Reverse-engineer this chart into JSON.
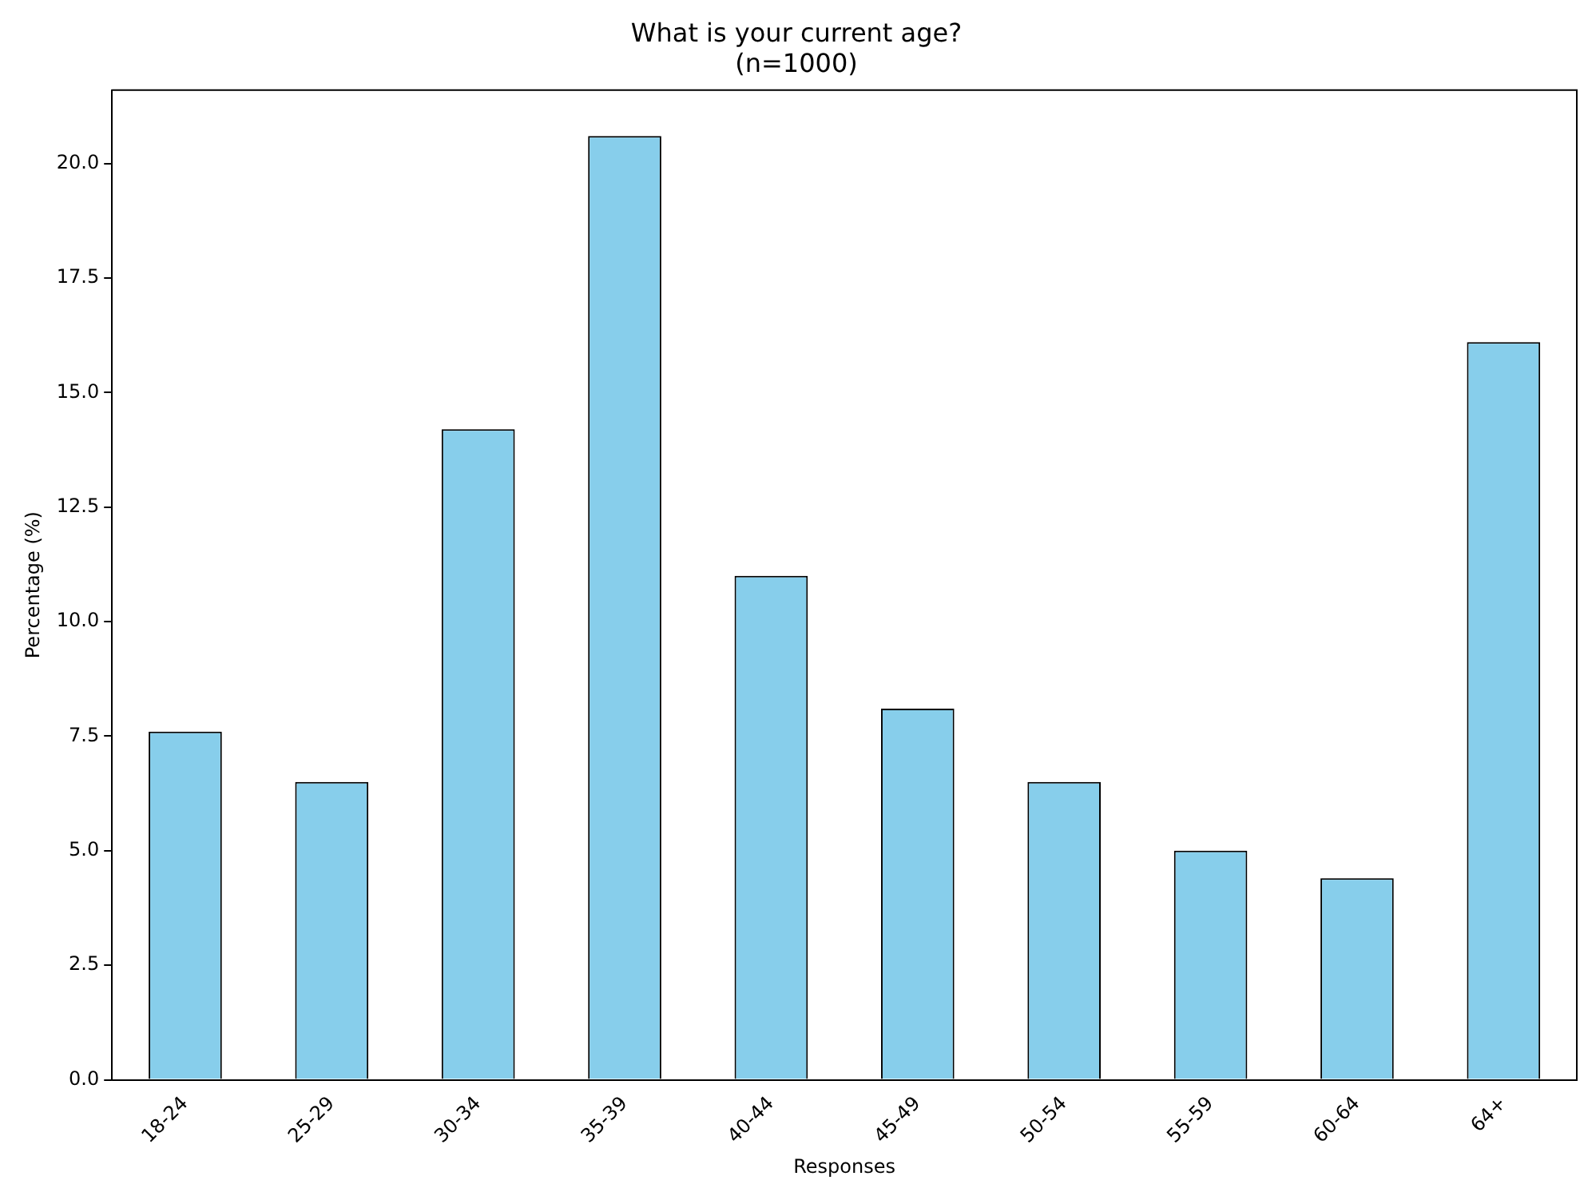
{
  "chart_data": {
    "type": "bar",
    "title": "What is your current age?\n(n=1000)",
    "xlabel": "Responses",
    "ylabel": "Percentage (%)",
    "categories": [
      "18-24",
      "25-29",
      "30-34",
      "35-39",
      "40-44",
      "45-49",
      "50-54",
      "55-59",
      "60-64",
      "64+"
    ],
    "values": [
      7.6,
      6.5,
      14.2,
      20.6,
      11.0,
      8.1,
      6.5,
      5.0,
      4.4,
      16.1
    ],
    "color": "#87ceeb",
    "ylim": [
      0,
      21.6
    ],
    "yticks": [
      {
        "value": 0,
        "label": "0.0"
      },
      {
        "value": 2.5,
        "label": "2.5"
      },
      {
        "value": 5,
        "label": "5.0"
      },
      {
        "value": 7.5,
        "label": "7.5"
      },
      {
        "value": 10,
        "label": "10.0"
      },
      {
        "value": 12.5,
        "label": "12.5"
      },
      {
        "value": 15,
        "label": "15.0"
      },
      {
        "value": 17.5,
        "label": "17.5"
      },
      {
        "value": 20,
        "label": "20.0"
      }
    ],
    "grid": false,
    "legend": false
  }
}
